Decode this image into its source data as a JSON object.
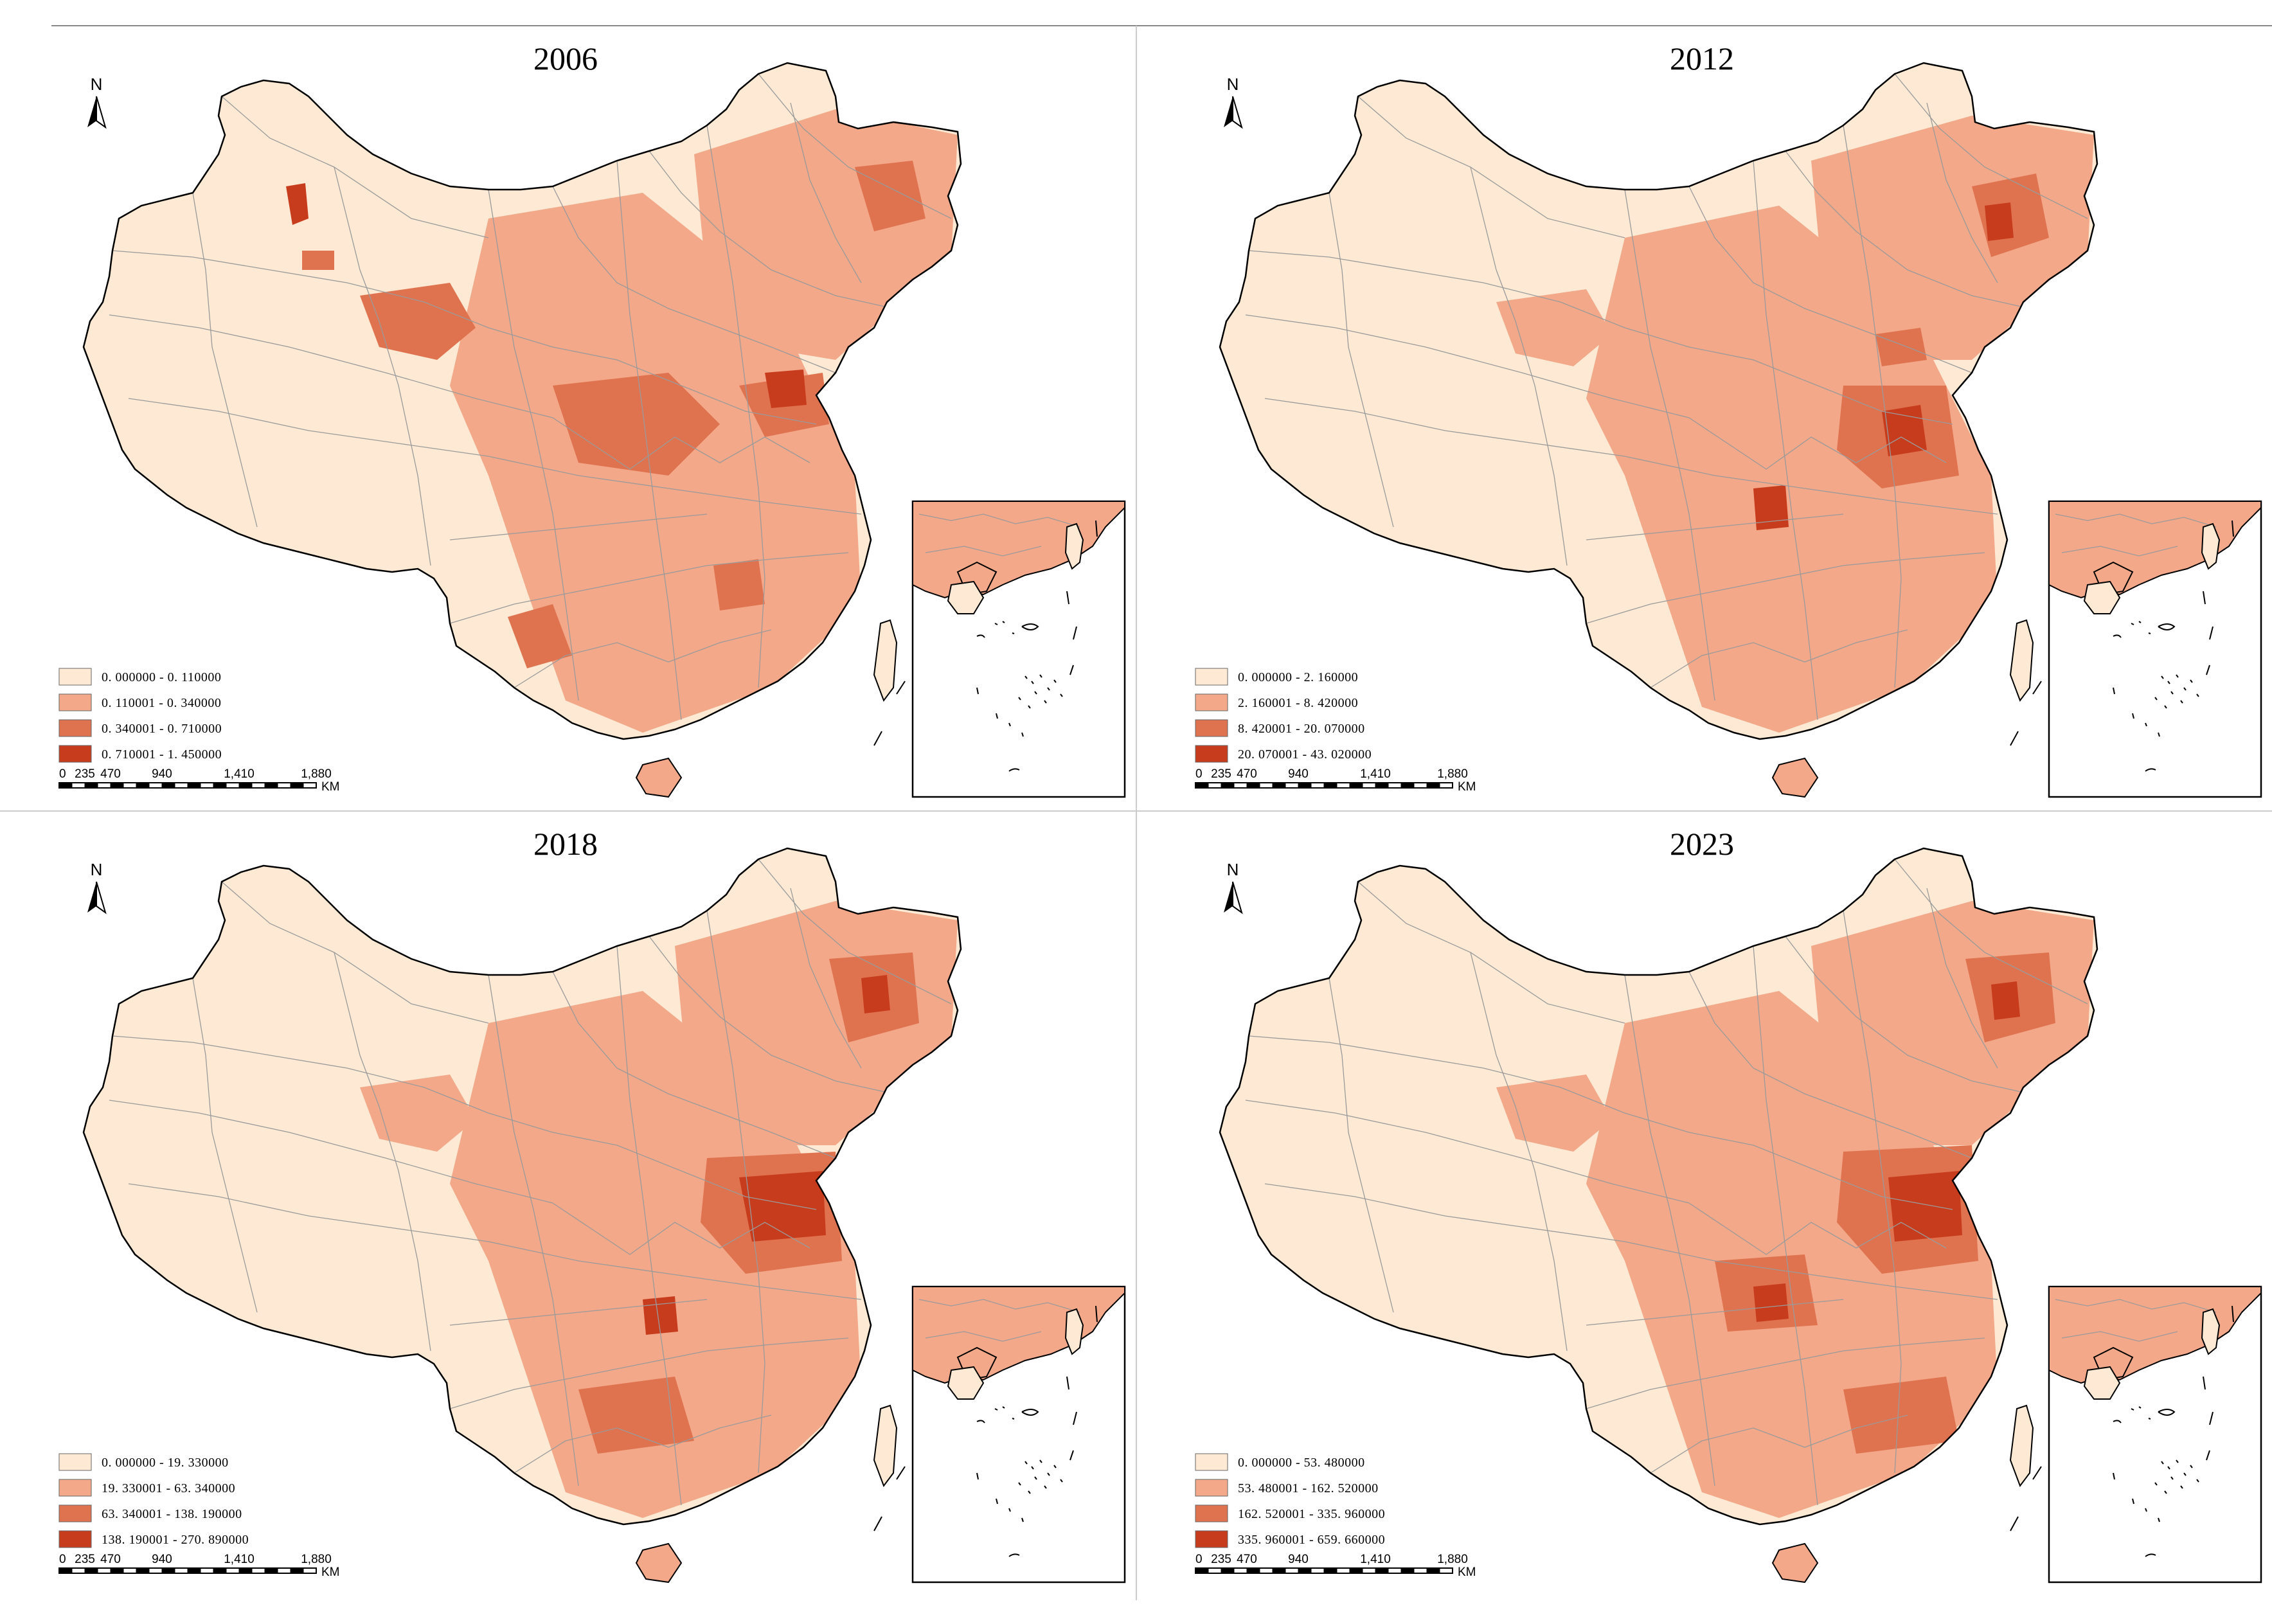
{
  "colors": {
    "class1": "#fde9d4",
    "class2": "#f2a889",
    "class3": "#e0734f",
    "class4": "#c83c1e",
    "boundary": "#9a9a9a",
    "outline": "#000000"
  },
  "north_label": "N",
  "scale_bar": {
    "ticks": [
      "0",
      "235",
      "470",
      "940",
      "1,410",
      "1,880"
    ],
    "unit": "KM"
  },
  "panels": [
    {
      "title": "2006",
      "legend": [
        "0. 000000 - 0. 110000",
        "0. 110001 - 0. 340000",
        "0. 340001 - 0. 710000",
        "0. 710001 - 1. 450000"
      ]
    },
    {
      "title": "2012",
      "legend": [
        "0. 000000 - 2. 160000",
        "2. 160001 - 8. 420000",
        "8. 420001 - 20. 070000",
        "20. 070001 - 43. 020000"
      ]
    },
    {
      "title": "2018",
      "legend": [
        "0. 000000 - 19. 330000",
        "19. 330001 - 63. 340000",
        "63. 340001 - 138. 190000",
        "138. 190001 - 270. 890000"
      ]
    },
    {
      "title": "2023",
      "legend": [
        "0. 000000 - 53. 480000",
        "53. 480001 - 162. 520000",
        "162. 520001 - 335. 960000",
        "335. 960001 - 659. 660000"
      ]
    }
  ]
}
